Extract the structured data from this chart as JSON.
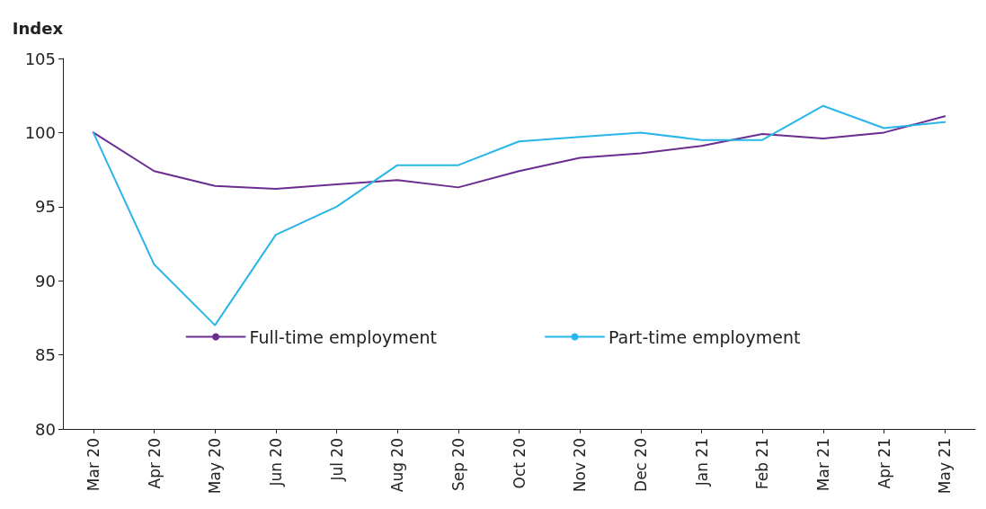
{
  "chart_data": {
    "type": "line",
    "ylabel": "Index",
    "categories": [
      "Mar 20",
      "Apr 20",
      "May 20",
      "Jun 20",
      "Jul 20",
      "Aug 20",
      "Sep 20",
      "Oct 20",
      "Nov 20",
      "Dec 20",
      "Jan 21",
      "Feb 21",
      "Mar 21",
      "Apr 21",
      "May 21"
    ],
    "series": [
      {
        "name": "Full-time employment",
        "color": "#6a2c91",
        "values": [
          100,
          97.4,
          96.4,
          96.2,
          96.5,
          96.8,
          96.3,
          97.4,
          98.3,
          98.6,
          99.1,
          99.9,
          99.6,
          100,
          101.1
        ]
      },
      {
        "name": "Part-time employment",
        "color": "#29b5e8",
        "values": [
          100,
          91.1,
          87.0,
          93.1,
          95.0,
          97.8,
          97.8,
          99.4,
          99.7,
          100,
          99.5,
          99.5,
          101.8,
          100.3,
          100.7
        ]
      }
    ],
    "ylim": [
      80,
      105
    ],
    "yticks": [
      80,
      85,
      90,
      95,
      100,
      105
    ],
    "grid": false,
    "legend": "bottom",
    "marker": "none",
    "line_style": "solid"
  }
}
